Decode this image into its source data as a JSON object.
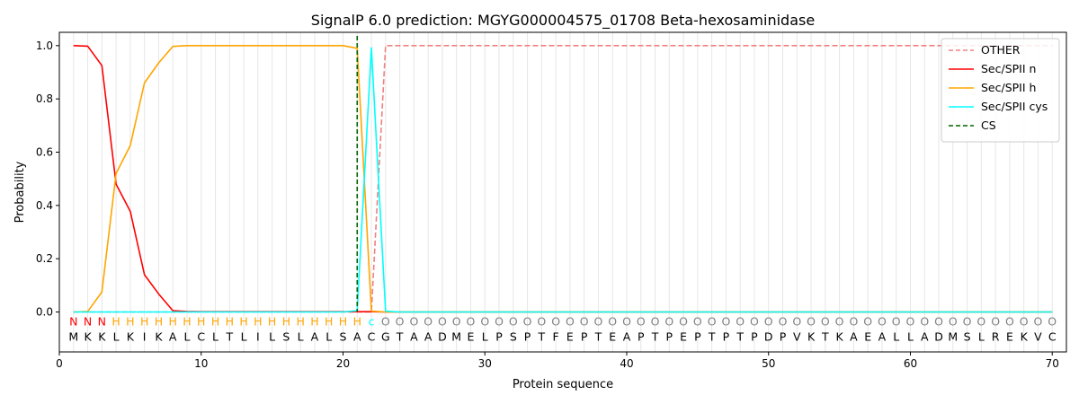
{
  "chart_data": {
    "type": "line",
    "title": "SignalP 6.0 prediction: MGYG000004575_01708 Beta-hexosaminidase",
    "xlabel": "Protein sequence",
    "ylabel": "Probability",
    "xlim": [
      0,
      71
    ],
    "ylim": [
      -0.15,
      1.05
    ],
    "xticks": [
      0,
      10,
      20,
      30,
      40,
      50,
      60,
      70
    ],
    "yticks": [
      0.0,
      0.2,
      0.4,
      0.6,
      0.8,
      1.0
    ],
    "xtick_labels": [
      "0",
      "10",
      "20",
      "30",
      "40",
      "50",
      "60",
      "70"
    ],
    "ytick_labels": [
      "0.0",
      "0.2",
      "0.4",
      "0.6",
      "0.8",
      "1.0"
    ],
    "grid": "vertical lines at each residue",
    "legend_position": "top-right",
    "sequence": [
      "M",
      "K",
      "K",
      "L",
      "K",
      "I",
      "K",
      "A",
      "L",
      "C",
      "L",
      "T",
      "L",
      "I",
      "L",
      "S",
      "L",
      "A",
      "L",
      "S",
      "A",
      "C",
      "G",
      "T",
      "A",
      "A",
      "D",
      "M",
      "E",
      "L",
      "P",
      "S",
      "P",
      "T",
      "F",
      "E",
      "P",
      "T",
      "E",
      "A",
      "P",
      "T",
      "P",
      "E",
      "P",
      "T",
      "P",
      "T",
      "P",
      "D",
      "P",
      "V",
      "K",
      "T",
      "K",
      "A",
      "E",
      "A",
      "L",
      "L",
      "A",
      "D",
      "M",
      "S",
      "L",
      "R",
      "E",
      "K",
      "V",
      "C"
    ],
    "prediction": [
      "N",
      "N",
      "N",
      "H",
      "H",
      "H",
      "H",
      "H",
      "H",
      "H",
      "H",
      "H",
      "H",
      "H",
      "H",
      "H",
      "H",
      "H",
      "H",
      "H",
      "H",
      "c",
      "O",
      "O",
      "O",
      "O",
      "O",
      "O",
      "O",
      "O",
      "O",
      "O",
      "O",
      "O",
      "O",
      "O",
      "O",
      "O",
      "O",
      "O",
      "O",
      "O",
      "O",
      "O",
      "O",
      "O",
      "O",
      "O",
      "O",
      "O",
      "O",
      "O",
      "O",
      "O",
      "O",
      "O",
      "O",
      "O",
      "O",
      "O",
      "O",
      "O",
      "O",
      "O",
      "O",
      "O",
      "O",
      "O",
      "O",
      "O"
    ],
    "prediction_colors": {
      "N": "#ff0000",
      "H": "#ffa500",
      "c": "#00ffff",
      "O": "#808080"
    },
    "cleavage_site": 21,
    "series": [
      {
        "name": "OTHER",
        "color": "#f08080",
        "dash": true,
        "values": [
          0,
          0,
          0,
          0,
          0,
          0,
          0,
          0,
          0,
          0,
          0,
          0,
          0,
          0,
          0,
          0,
          0,
          0,
          0,
          0,
          0,
          0,
          1.0,
          1.0,
          1.0,
          1.0,
          1.0,
          1.0,
          1.0,
          1.0,
          1.0,
          1.0,
          1.0,
          1.0,
          1.0,
          1.0,
          1.0,
          1.0,
          1.0,
          1.0,
          1.0,
          1.0,
          1.0,
          1.0,
          1.0,
          1.0,
          1.0,
          1.0,
          1.0,
          1.0,
          1.0,
          1.0,
          1.0,
          1.0,
          1.0,
          1.0,
          1.0,
          1.0,
          1.0,
          1.0,
          1.0,
          1.0,
          1.0,
          1.0,
          1.0,
          1.0,
          1.0,
          1.0,
          1.0,
          1.0
        ]
      },
      {
        "name": "Sec/SPII n",
        "color": "#ff0000",
        "dash": false,
        "values": [
          1.0,
          0.998,
          0.925,
          0.48,
          0.378,
          0.14,
          0.068,
          0.005,
          0.002,
          0.001,
          0.001,
          0.001,
          0.001,
          0.001,
          0.001,
          0.001,
          0.001,
          0.001,
          0.001,
          0.001,
          0.001,
          0.001,
          0,
          0,
          0,
          0,
          0,
          0,
          0,
          0,
          0,
          0,
          0,
          0,
          0,
          0,
          0,
          0,
          0,
          0,
          0,
          0,
          0,
          0,
          0,
          0,
          0,
          0,
          0,
          0,
          0,
          0,
          0,
          0,
          0,
          0,
          0,
          0,
          0,
          0,
          0,
          0,
          0,
          0,
          0,
          0,
          0,
          0,
          0,
          0
        ]
      },
      {
        "name": "Sec/SPII h",
        "color": "#ffa500",
        "dash": false,
        "values": [
          0,
          0.002,
          0.075,
          0.52,
          0.625,
          0.86,
          0.935,
          0.997,
          1.0,
          1.0,
          1.0,
          1.0,
          1.0,
          1.0,
          1.0,
          1.0,
          1.0,
          1.0,
          1.0,
          1.0,
          0.99,
          0.003,
          0,
          0,
          0,
          0,
          0,
          0,
          0,
          0,
          0,
          0,
          0,
          0,
          0,
          0,
          0,
          0,
          0,
          0,
          0,
          0,
          0,
          0,
          0,
          0,
          0,
          0,
          0,
          0,
          0,
          0,
          0,
          0,
          0,
          0,
          0,
          0,
          0,
          0,
          0,
          0,
          0,
          0,
          0,
          0,
          0,
          0,
          0,
          0
        ]
      },
      {
        "name": "Sec/SPII cys",
        "color": "#00ffff",
        "dash": false,
        "values": [
          0,
          0,
          0,
          0,
          0,
          0,
          0,
          0,
          0,
          0,
          0,
          0,
          0,
          0,
          0,
          0,
          0,
          0,
          0,
          0,
          0.005,
          0.992,
          0.003,
          0,
          0,
          0,
          0,
          0,
          0,
          0,
          0,
          0,
          0,
          0,
          0,
          0,
          0,
          0,
          0,
          0,
          0,
          0,
          0,
          0,
          0,
          0,
          0,
          0,
          0,
          0,
          0,
          0,
          0,
          0,
          0,
          0,
          0,
          0,
          0,
          0,
          0,
          0,
          0,
          0,
          0,
          0,
          0,
          0,
          0,
          0
        ]
      },
      {
        "name": "CS",
        "color": "#006400",
        "dash": true,
        "values": []
      }
    ]
  }
}
